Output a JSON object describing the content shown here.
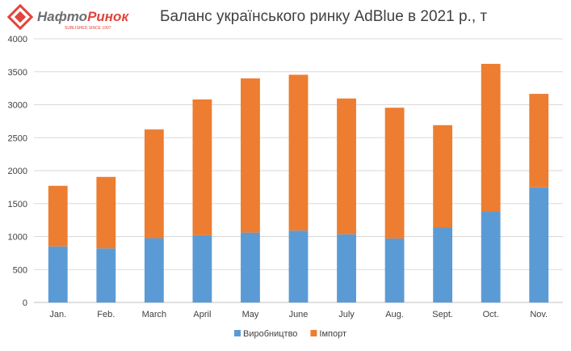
{
  "header": {
    "logo_text_left": "Нафто",
    "logo_text_right": "Ринок",
    "logo_subtitle": "SUBLISHED SINCE 1997",
    "title": "Баланс українського ринку AdBlue в 2021 р., т"
  },
  "colors": {
    "logo_red": "#e2453c",
    "logo_gray": "#6d6e71",
    "production": "#5b9bd5",
    "import": "#ed7d31",
    "grid": "#d9d9d9",
    "axis": "#bfbfbf"
  },
  "chart_data": {
    "type": "bar",
    "stacked": true,
    "title": "Баланс українського ринку AdBlue в 2021 р., т",
    "xlabel": "",
    "ylabel": "",
    "ylim": [
      0,
      4000
    ],
    "yticks": [
      0,
      500,
      1000,
      1500,
      2000,
      2500,
      3000,
      3500,
      4000
    ],
    "grid": true,
    "legend_position": "bottom",
    "categories": [
      "Jan.",
      "Feb.",
      "March",
      "April",
      "May",
      "June",
      "July",
      "Aug.",
      "Sept.",
      "Oct.",
      "Nov."
    ],
    "series": [
      {
        "name": "Виробництво",
        "color": "#5b9bd5",
        "values": [
          850,
          820,
          975,
          1020,
          1060,
          1090,
          1035,
          970,
          1135,
          1380,
          1745
        ]
      },
      {
        "name": "Імпорт",
        "color": "#ed7d31",
        "values": [
          920,
          1085,
          1650,
          2060,
          2340,
          2365,
          2060,
          1985,
          1555,
          2240,
          1420
        ]
      }
    ]
  }
}
